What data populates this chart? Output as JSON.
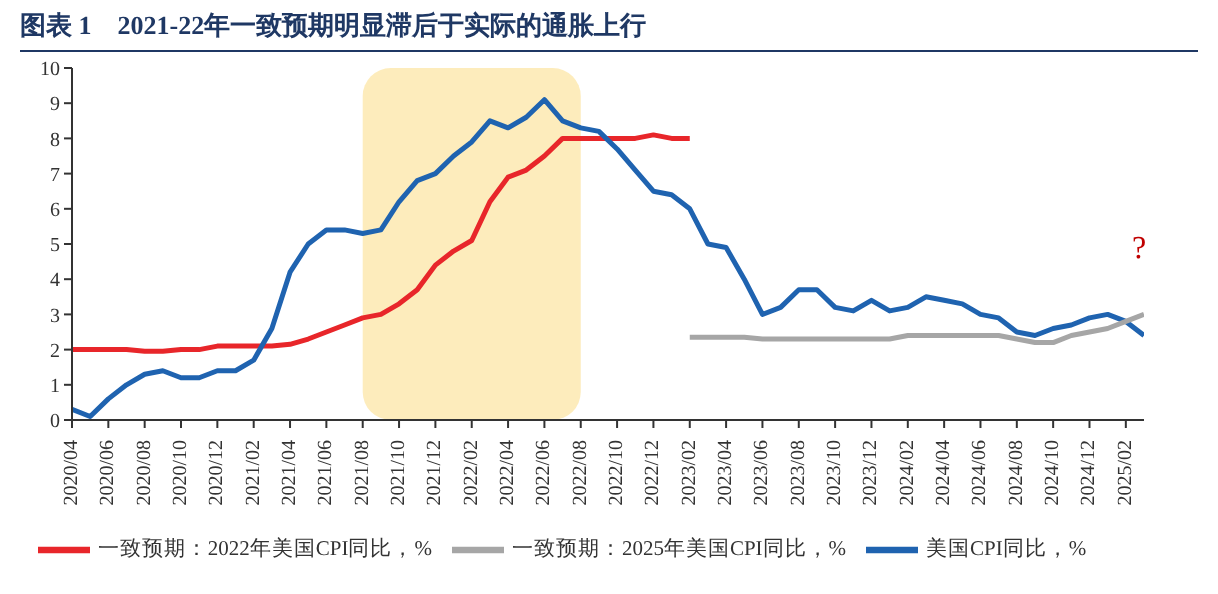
{
  "chart_data": {
    "type": "line",
    "title": "图表 1　2021-22年一致预期明显滞后于实际的通胀上行",
    "categories": [
      "2020/04",
      null,
      "2020/06",
      null,
      "2020/08",
      null,
      "2020/10",
      null,
      "2020/12",
      null,
      "2021/02",
      null,
      "2021/04",
      null,
      "2021/06",
      null,
      "2021/08",
      null,
      "2021/10",
      null,
      "2021/12",
      null,
      "2022/02",
      null,
      "2022/04",
      null,
      "2022/06",
      null,
      "2022/08",
      null,
      "2022/10",
      null,
      "2022/12",
      null,
      "2023/02",
      null,
      "2023/04",
      null,
      "2023/06",
      null,
      "2023/08",
      null,
      "2023/10",
      null,
      "2023/12",
      null,
      "2024/02",
      null,
      "2024/04",
      null,
      "2024/06",
      null,
      "2024/08",
      null,
      "2024/10",
      null,
      "2024/12",
      null,
      "2025/02",
      null
    ],
    "series": [
      {
        "name": "一致预期：2022年美国CPI同比，%",
        "color": "#e8262a",
        "values": [
          2.0,
          2.0,
          2.0,
          2.0,
          1.95,
          1.95,
          2.0,
          2.0,
          2.1,
          2.1,
          2.1,
          2.1,
          2.15,
          2.3,
          2.5,
          2.7,
          2.9,
          3.0,
          3.3,
          3.7,
          4.4,
          4.8,
          5.1,
          6.2,
          6.9,
          7.1,
          7.5,
          8.0,
          8.0,
          8.0,
          8.0,
          8.0,
          8.1,
          8.0,
          8.0,
          null,
          null,
          null,
          null,
          null,
          null,
          null,
          null,
          null,
          null,
          null,
          null,
          null,
          null,
          null,
          null,
          null,
          null,
          null,
          null,
          null,
          null,
          null,
          null,
          null
        ]
      },
      {
        "name": "美国CPI同比，%",
        "color": "#1f63b0",
        "values": [
          0.3,
          0.1,
          0.6,
          1.0,
          1.3,
          1.4,
          1.2,
          1.2,
          1.4,
          1.4,
          1.7,
          2.6,
          4.2,
          5.0,
          5.4,
          5.4,
          5.3,
          5.4,
          6.2,
          6.8,
          7.0,
          7.5,
          7.9,
          8.5,
          8.3,
          8.6,
          9.1,
          8.5,
          8.3,
          8.2,
          7.7,
          7.1,
          6.5,
          6.4,
          6.0,
          5.0,
          4.9,
          4.0,
          3.0,
          3.2,
          3.7,
          3.7,
          3.2,
          3.1,
          3.4,
          3.1,
          3.2,
          3.5,
          3.4,
          3.3,
          3.0,
          2.9,
          2.5,
          2.4,
          2.6,
          2.7,
          2.9,
          3.0,
          2.8,
          2.4
        ]
      },
      {
        "name": "一致预期：2025年美国CPI同比，%",
        "color": "#a6a6a6",
        "values": [
          null,
          null,
          null,
          null,
          null,
          null,
          null,
          null,
          null,
          null,
          null,
          null,
          null,
          null,
          null,
          null,
          null,
          null,
          null,
          null,
          null,
          null,
          null,
          null,
          null,
          null,
          null,
          null,
          null,
          null,
          null,
          null,
          null,
          null,
          2.35,
          2.35,
          2.35,
          2.35,
          2.3,
          2.3,
          2.3,
          2.3,
          2.3,
          2.3,
          2.3,
          2.3,
          2.4,
          2.4,
          2.4,
          2.4,
          2.4,
          2.4,
          2.3,
          2.2,
          2.2,
          2.4,
          2.5,
          2.6,
          2.8,
          3.0
        ]
      }
    ],
    "ylim": [
      0,
      10
    ],
    "yticks": [
      0,
      1,
      2,
      3,
      4,
      5,
      6,
      7,
      8,
      9,
      10
    ],
    "bands": [
      {
        "axis": "x",
        "from": "2021/08",
        "to": "2022/08",
        "color": "#fde9b0"
      }
    ],
    "annotations": [
      "?"
    ],
    "grid": false,
    "legend": "bottom",
    "marker": "none",
    "line_style": "solid"
  }
}
